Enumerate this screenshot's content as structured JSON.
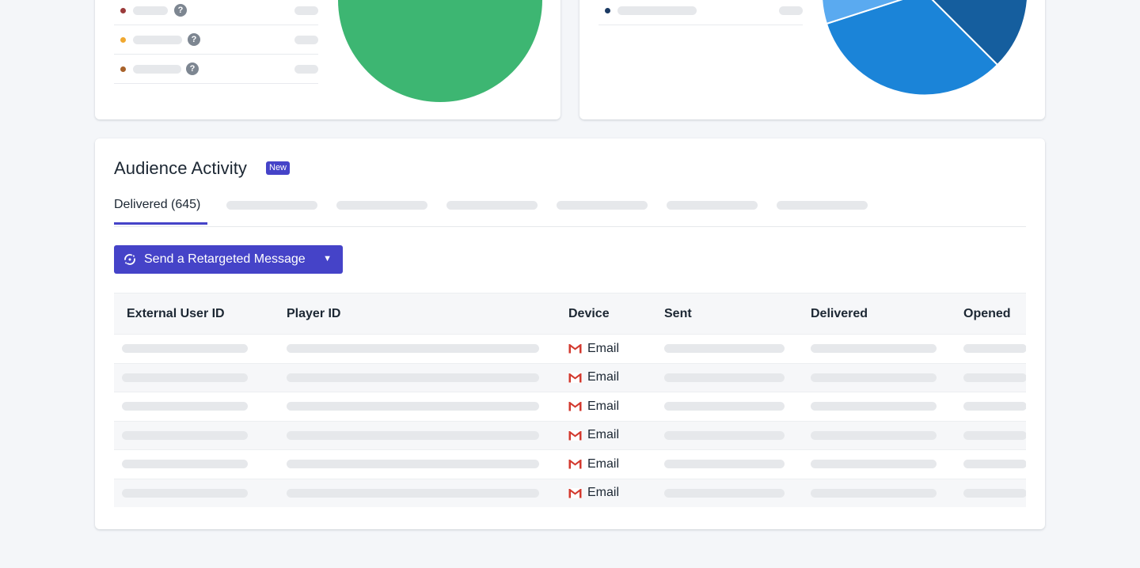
{
  "summary_left": {
    "legend": [
      {
        "dot_color": "#9b3b3b",
        "has_help": true,
        "help_glyph": "?"
      },
      {
        "dot_color": "#f0a830",
        "has_help": true,
        "help_glyph": "?"
      },
      {
        "dot_color": "#a8622a",
        "has_help": true,
        "help_glyph": "?"
      }
    ],
    "pie_color": "#3db672"
  },
  "summary_right": {
    "legend": [
      {
        "dot_color": "#1b3a63"
      }
    ],
    "pie_colors": [
      "#1b84d8",
      "#155e9e",
      "#5aaaf0"
    ]
  },
  "audience": {
    "title": "Audience Activity",
    "badge": "New",
    "tabs": {
      "active_label": "Delivered (645)",
      "placeholder_count": 6
    },
    "retarget_button": {
      "label": "Send a Retargeted Message",
      "caret": "▼",
      "icon": "retarget-refresh-icon"
    },
    "table": {
      "columns": [
        "External User ID",
        "Player ID",
        "Device",
        "Sent",
        "Delivered",
        "Opened"
      ],
      "rows": [
        {
          "device": "Email",
          "device_icon": "gmail-icon"
        },
        {
          "device": "Email",
          "device_icon": "gmail-icon"
        },
        {
          "device": "Email",
          "device_icon": "gmail-icon"
        },
        {
          "device": "Email",
          "device_icon": "gmail-icon"
        },
        {
          "device": "Email",
          "device_icon": "gmail-icon"
        },
        {
          "device": "Email",
          "device_icon": "gmail-icon"
        }
      ]
    }
  },
  "colors": {
    "accent": "#4543c8",
    "page_background": "#f4f6f9",
    "skeleton": "#e6e8eb"
  }
}
